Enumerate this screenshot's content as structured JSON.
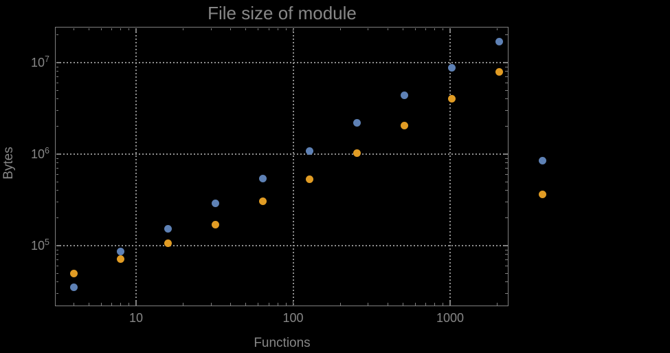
{
  "figure": {
    "background_color": "#000000",
    "text_color": "#878787",
    "frame_color": "#7f7f7f",
    "grid_color": "#8f8f8f"
  },
  "chart_data": {
    "type": "scatter",
    "title": "File size of module",
    "xlabel": "Functions",
    "ylabel": "Bytes",
    "x_scale": "log",
    "y_scale": "log",
    "x_range": [
      3.1,
      2340
    ],
    "y_range": [
      22000,
      24400000
    ],
    "grid": "dotted gridlines at decade ticks, framed plot, log minor ticks on all four edges",
    "legend_position": "none",
    "x_ticks": [
      {
        "value": 10,
        "label": "10"
      },
      {
        "value": 100,
        "label": "100"
      },
      {
        "value": 1000,
        "label": "1000"
      }
    ],
    "y_ticks": [
      {
        "value": 100000,
        "mantissa": "10",
        "exponent": "5"
      },
      {
        "value": 1000000,
        "mantissa": "10",
        "exponent": "6"
      },
      {
        "value": 10000000,
        "mantissa": "10",
        "exponent": "7"
      }
    ],
    "series": [
      {
        "name": "blue",
        "color": "#5E81B5",
        "points": [
          [
            4,
            35000
          ],
          [
            8,
            86000
          ],
          [
            16,
            153000
          ],
          [
            32,
            288000
          ],
          [
            64,
            545000
          ],
          [
            128,
            1090000
          ],
          [
            256,
            2200000
          ],
          [
            512,
            4410000
          ],
          [
            1024,
            8810000
          ],
          [
            2048,
            16900000
          ],
          [
            3860,
            849000
          ]
        ]
      },
      {
        "name": "orange",
        "color": "#E19C24",
        "points": [
          [
            4,
            49500
          ],
          [
            8,
            70800
          ],
          [
            16,
            107000
          ],
          [
            32,
            171000
          ],
          [
            64,
            303000
          ],
          [
            128,
            536000
          ],
          [
            256,
            1020000
          ],
          [
            512,
            2050000
          ],
          [
            1024,
            4040000
          ],
          [
            2048,
            7940000
          ],
          [
            3860,
            366000
          ]
        ]
      }
    ]
  }
}
